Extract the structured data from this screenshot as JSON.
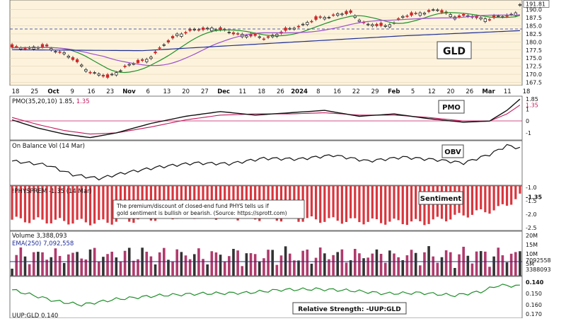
{
  "chart_data": [
    {
      "type": "candlestick",
      "ticker_label": "GLD",
      "y_ticks": [
        "191.81",
        "190.0",
        "187.5",
        "185.0",
        "182.5",
        "180.0",
        "177.5",
        "175.0",
        "172.5",
        "170.0",
        "167.5"
      ],
      "ylim": [
        166.5,
        193.0
      ],
      "current_price": 191.81,
      "x_tick_labels": [
        "18",
        "25",
        "Oct",
        "9",
        "16",
        "23",
        "Nov",
        "6",
        "13",
        "20",
        "27",
        "Dec",
        "11",
        "18",
        "26",
        "2024",
        "8",
        "16",
        "22",
        "29",
        "Feb",
        "5",
        "12",
        "20",
        "26",
        "Mar",
        "11",
        "18"
      ],
      "overlays": [
        {
          "name": "ma_short",
          "color": "#1f8f2a"
        },
        {
          "name": "ma_mid",
          "color": "#9b4fd0"
        },
        {
          "name": "ma_long",
          "color": "#1f2f9a"
        }
      ]
    },
    {
      "type": "line",
      "label_prefix": "PMO(35,20,10)",
      "value_1": "1.85",
      "value_2": "1.35",
      "value_2_color": "#c2185b",
      "badge": "PMO",
      "y_ticks": [
        "1.85",
        "1.35",
        "1",
        "0",
        "-1"
      ],
      "ylim": [
        -1.6,
        2.1
      ]
    },
    {
      "type": "line",
      "label": "On Balance Vol (14 Mar)",
      "badge": "OBV"
    },
    {
      "type": "bar",
      "label": "!PHYSPREM -1.35 (14 Mar)",
      "badge": "Sentiment",
      "y_ticks": [
        "-1.0",
        "-1.35",
        "-1.5",
        "-2.0",
        "-2.5"
      ],
      "ylim": [
        -2.6,
        -0.95
      ],
      "annotation_lines": [
        "The premium/discount of closed-end fund PHYS tells us if",
        "gold sentiment is bullish or bearish. (Source: https://sprott.com)"
      ]
    },
    {
      "type": "bar",
      "label_volume": "Volume 3,388,093",
      "label_ema": "EMA(250) 7,092,558",
      "y_ticks": [
        "20M",
        "15M",
        "10M",
        "7092558",
        "5M",
        "3388093"
      ]
    },
    {
      "type": "line",
      "label": "Relative Strength: -UUP:GLD",
      "bottom_label": "UUP:GLD 0.140",
      "y_ticks": [
        "0.140",
        "0.150",
        "0.160",
        "0.170"
      ]
    }
  ]
}
